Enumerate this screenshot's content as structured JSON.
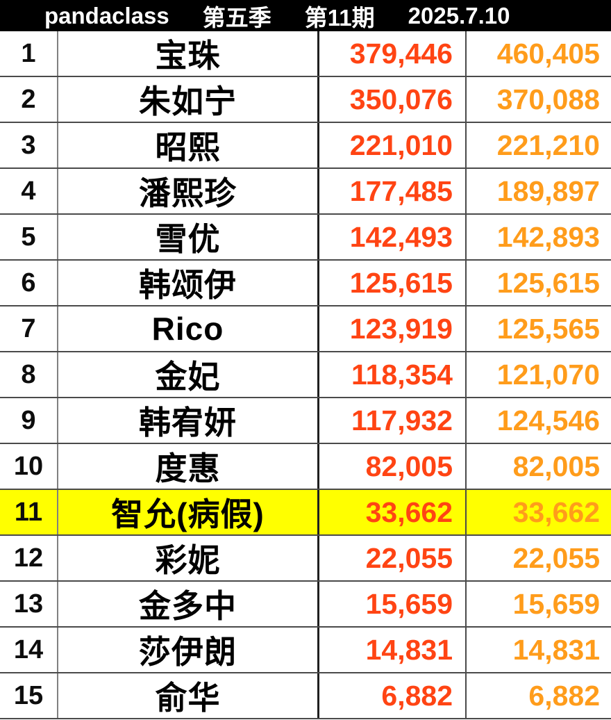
{
  "header": {
    "brand": "pandaclass",
    "season": "第五季",
    "episode": "第11期",
    "date": "2025.7.10"
  },
  "colors": {
    "header_bg": "#000000",
    "header_text": "#FFFFFF",
    "score1_text": "#FF4413",
    "score2_text": "#FF9C1B",
    "highlight_row_bg": "#FFFF00"
  },
  "table": {
    "rows": [
      {
        "rank": "1",
        "name": "宝珠",
        "score1": "379,446",
        "score2": "460,405",
        "highlight": false
      },
      {
        "rank": "2",
        "name": "朱如宁",
        "score1": "350,076",
        "score2": "370,088",
        "highlight": false
      },
      {
        "rank": "3",
        "name": "昭熙",
        "score1": "221,010",
        "score2": "221,210",
        "highlight": false
      },
      {
        "rank": "4",
        "name": "潘熙珍",
        "score1": "177,485",
        "score2": "189,897",
        "highlight": false
      },
      {
        "rank": "5",
        "name": "雪优",
        "score1": "142,493",
        "score2": "142,893",
        "highlight": false
      },
      {
        "rank": "6",
        "name": "韩颂伊",
        "score1": "125,615",
        "score2": "125,615",
        "highlight": false
      },
      {
        "rank": "7",
        "name": "Rico",
        "score1": "123,919",
        "score2": "125,565",
        "highlight": false
      },
      {
        "rank": "8",
        "name": "金妃",
        "score1": "118,354",
        "score2": "121,070",
        "highlight": false
      },
      {
        "rank": "9",
        "name": "韩宥妍",
        "score1": "117,932",
        "score2": "124,546",
        "highlight": false
      },
      {
        "rank": "10",
        "name": "度惠",
        "score1": "82,005",
        "score2": "82,005",
        "highlight": false
      },
      {
        "rank": "11",
        "name": "智允(病假)",
        "score1": "33,662",
        "score2": "33,662",
        "highlight": true
      },
      {
        "rank": "12",
        "name": "彩妮",
        "score1": "22,055",
        "score2": "22,055",
        "highlight": false
      },
      {
        "rank": "13",
        "name": "金多中",
        "score1": "15,659",
        "score2": "15,659",
        "highlight": false
      },
      {
        "rank": "14",
        "name": "莎伊朗",
        "score1": "14,831",
        "score2": "14,831",
        "highlight": false
      },
      {
        "rank": "15",
        "name": "俞华",
        "score1": "6,882",
        "score2": "6,882",
        "highlight": false
      }
    ]
  }
}
